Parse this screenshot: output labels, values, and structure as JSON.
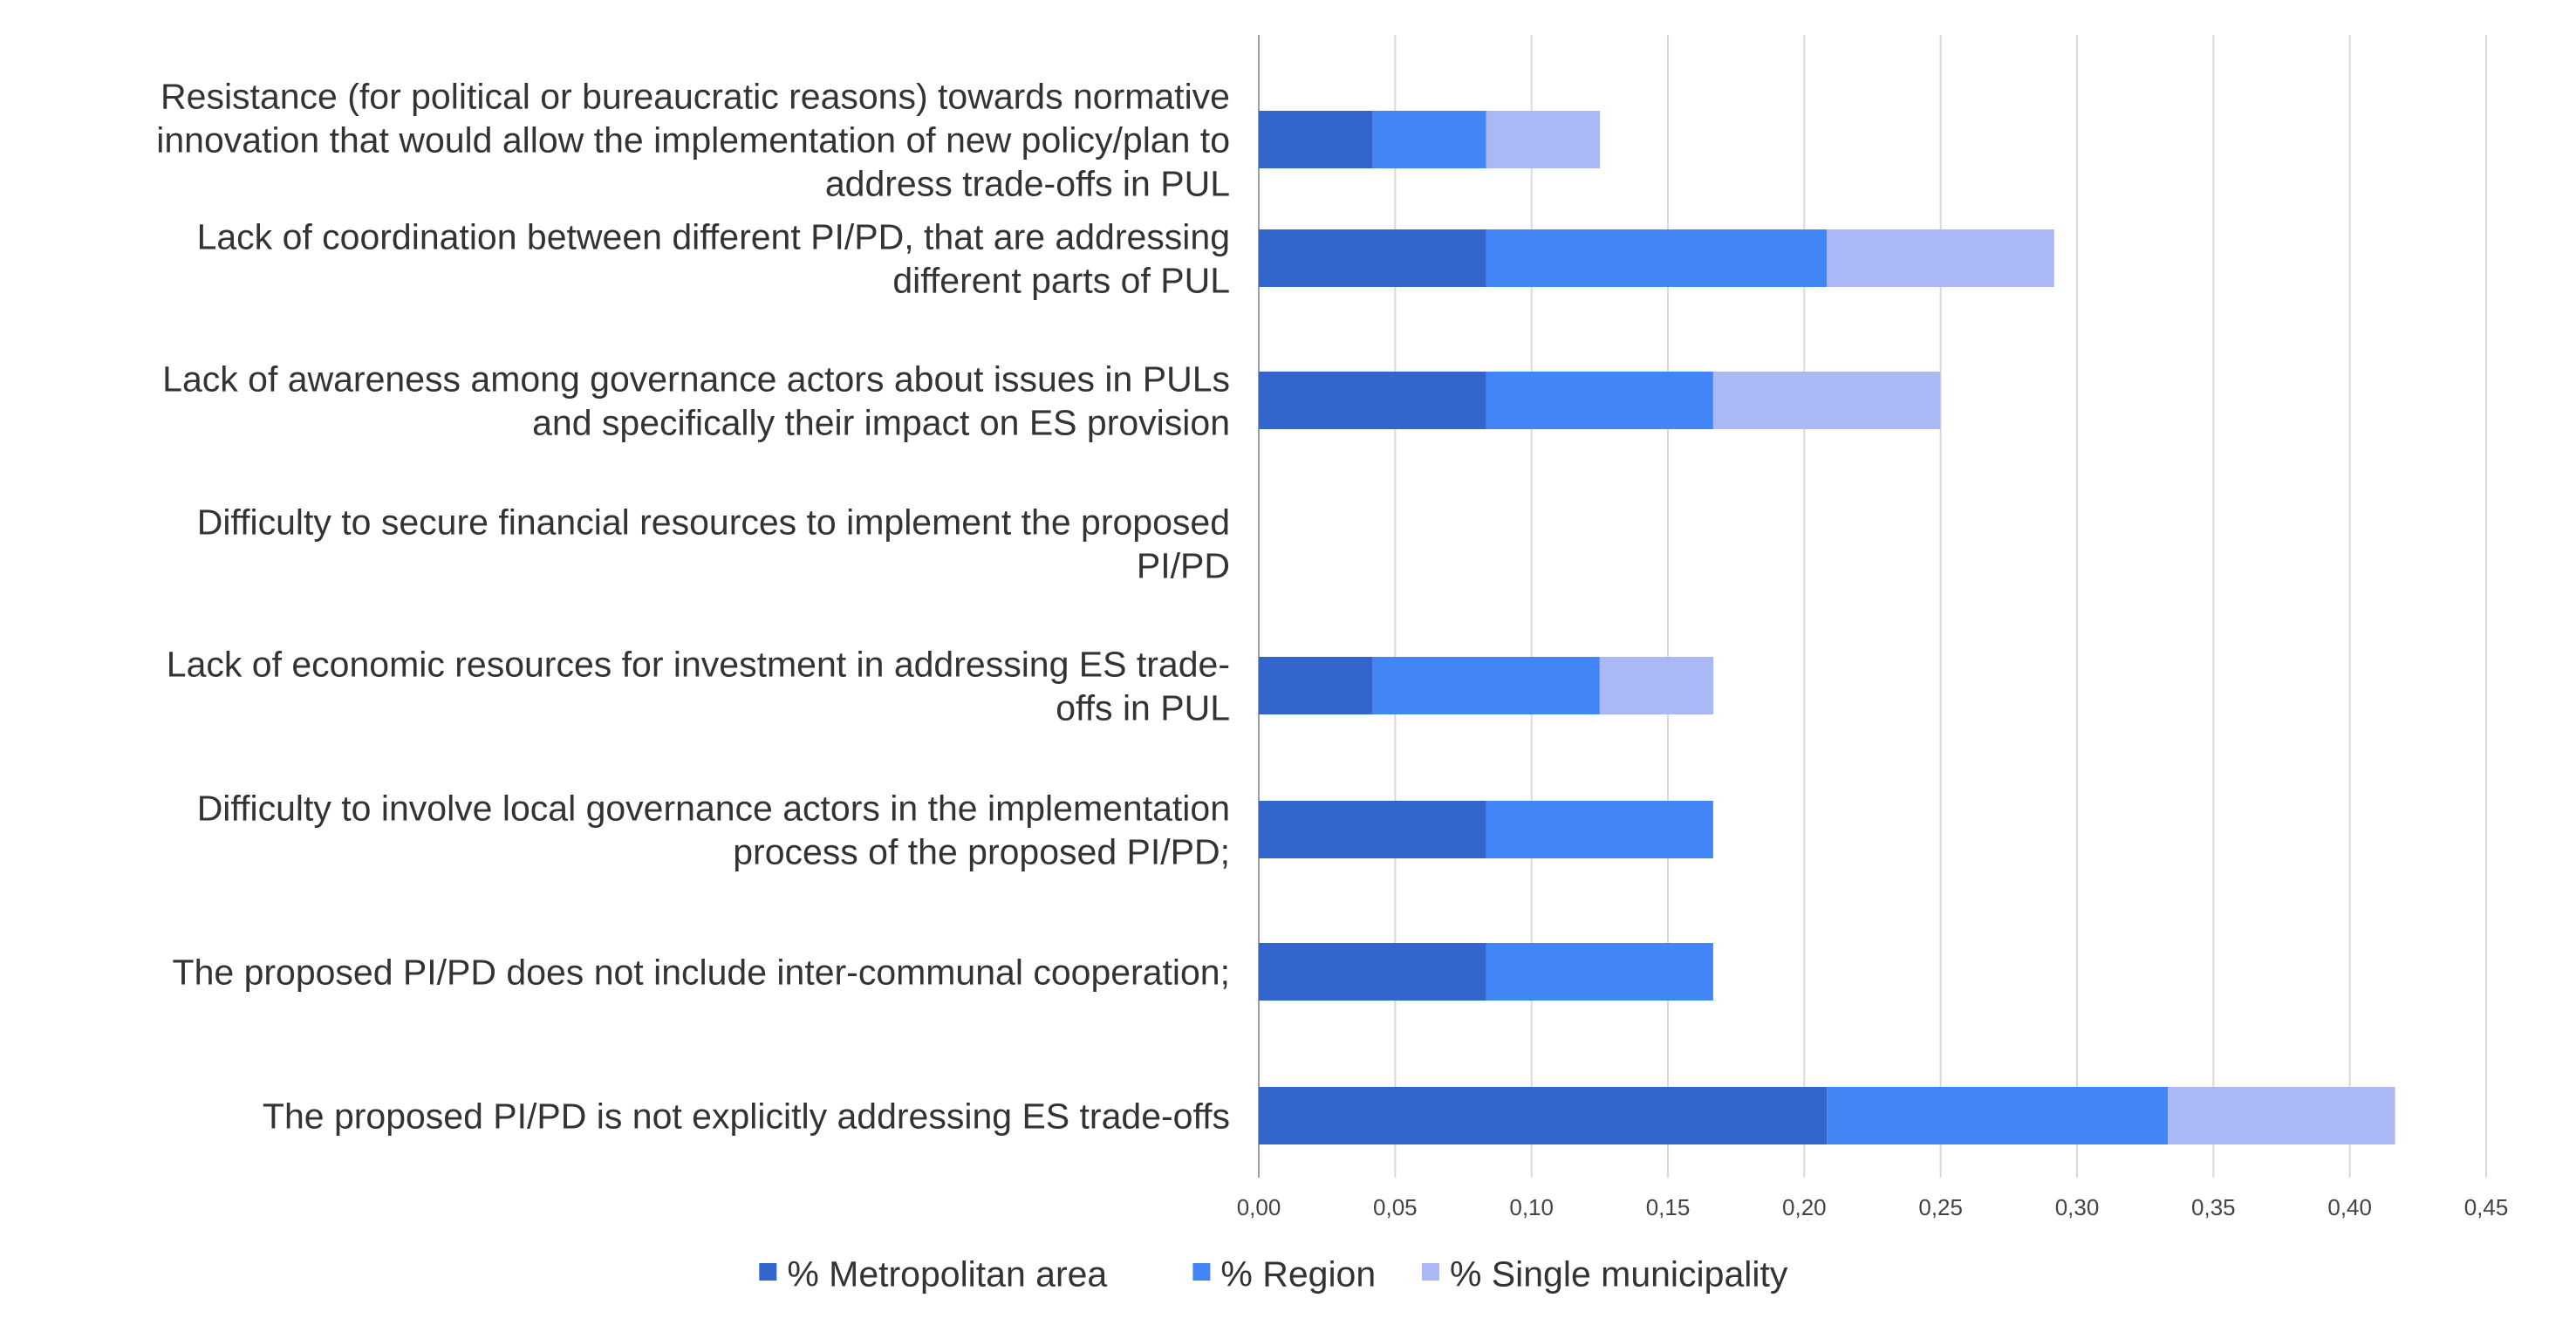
{
  "chart_data": {
    "type": "bar",
    "orientation": "horizontal",
    "stacked": true,
    "title": "",
    "xlabel": "",
    "ylabel": "",
    "xlim": [
      0,
      0.45
    ],
    "x_ticks": [
      0,
      0.05,
      0.1,
      0.15,
      0.2,
      0.25,
      0.3,
      0.35,
      0.4,
      0.45
    ],
    "x_tick_labels": [
      "0,00",
      "0,05",
      "0,10",
      "0,15",
      "0,20",
      "0,25",
      "0,30",
      "0,35",
      "0,40",
      "0,45"
    ],
    "grid": "vertical",
    "legend_position": "bottom",
    "categories": [
      [
        "Resistance (for political or bureaucratic reasons) towards normative",
        "innovation that would allow the implementation of new policy/plan to",
        "address trade-offs in PUL"
      ],
      [
        "Lack of coordination between different PI/PD, that are addressing",
        "different parts of PUL"
      ],
      [
        "Lack of awareness among governance actors about issues in PULs",
        "and specifically their impact on ES provision"
      ],
      [
        "Difficulty to secure financial resources to implement the proposed",
        "PI/PD"
      ],
      [
        "Lack of economic resources for investment in addressing ES trade-",
        "offs in PUL"
      ],
      [
        "Difficulty to involve local governance actors in the implementation",
        "process of the proposed PI/PD;"
      ],
      [
        "The proposed PI/PD does not include inter-communal cooperation;"
      ],
      [
        "The proposed PI/PD is not explicitly addressing ES trade-offs"
      ]
    ],
    "series": [
      {
        "name": "% Metropolitan area",
        "color": "#3366cc",
        "values": [
          0.0417,
          0.0833,
          0.0833,
          0,
          0.0417,
          0.0833,
          0.0833,
          0.2083
        ]
      },
      {
        "name": "% Region",
        "color": "#4285f4",
        "values": [
          0.0417,
          0.125,
          0.0833,
          0,
          0.0833,
          0.0833,
          0.0833,
          0.125
        ]
      },
      {
        "name": "% Single municipality",
        "color": "#aab9f5",
        "values": [
          0.0417,
          0.0833,
          0.0833,
          0,
          0.0417,
          0,
          0,
          0.0833
        ]
      }
    ]
  }
}
